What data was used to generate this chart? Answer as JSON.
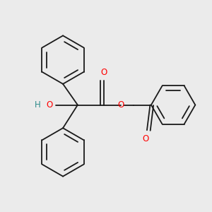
{
  "background_color": "#ebebeb",
  "bond_color": "#1a1a1a",
  "oxygen_color": "#ff0000",
  "hydrogen_color": "#2e8b8b",
  "lw": 1.3,
  "figsize": [
    3.0,
    3.0
  ],
  "dpi": 100,
  "xlim": [
    0.0,
    1.0
  ],
  "ylim": [
    0.0,
    1.0
  ]
}
